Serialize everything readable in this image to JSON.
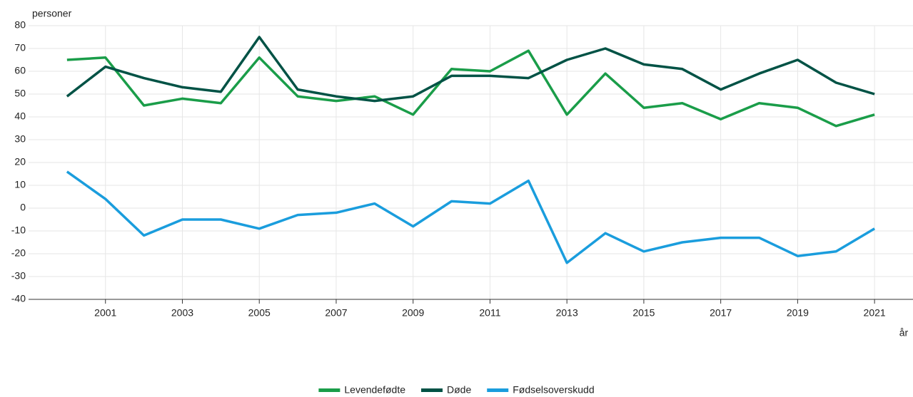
{
  "chart_data": {
    "type": "line",
    "y_label": "personer",
    "x_label": "år",
    "x": [
      2000,
      2001,
      2002,
      2003,
      2004,
      2005,
      2006,
      2007,
      2008,
      2009,
      2010,
      2011,
      2012,
      2013,
      2014,
      2015,
      2016,
      2017,
      2018,
      2019,
      2020,
      2021
    ],
    "series": [
      {
        "name": "Levendefødte",
        "color": "#1a9d49",
        "values": [
          65,
          66,
          45,
          48,
          46,
          66,
          49,
          47,
          49,
          41,
          61,
          60,
          69,
          41,
          59,
          44,
          46,
          39,
          46,
          44,
          36,
          41
        ]
      },
      {
        "name": "Døde",
        "color": "#005245",
        "values": [
          49,
          62,
          57,
          53,
          51,
          75,
          52,
          49,
          47,
          49,
          58,
          58,
          57,
          65,
          70,
          63,
          61,
          52,
          59,
          65,
          55,
          50
        ]
      },
      {
        "name": "Fødselsoverskudd",
        "color": "#1a9ddd",
        "values": [
          16,
          4,
          -12,
          -5,
          -5,
          -9,
          -3,
          -2,
          2,
          -8,
          3,
          2,
          12,
          -24,
          -11,
          -19,
          -15,
          -13,
          -13,
          -21,
          -19,
          -9
        ]
      }
    ],
    "xlim": [
      1999,
      2022
    ],
    "xticks": [
      2001,
      2003,
      2005,
      2007,
      2009,
      2011,
      2013,
      2015,
      2017,
      2019,
      2021
    ],
    "ylim": [
      -40,
      80
    ],
    "yticks": [
      -40,
      -30,
      -20,
      -10,
      0,
      10,
      20,
      30,
      40,
      50,
      60,
      70,
      80
    ],
    "grid": true,
    "legend": "bottom"
  }
}
